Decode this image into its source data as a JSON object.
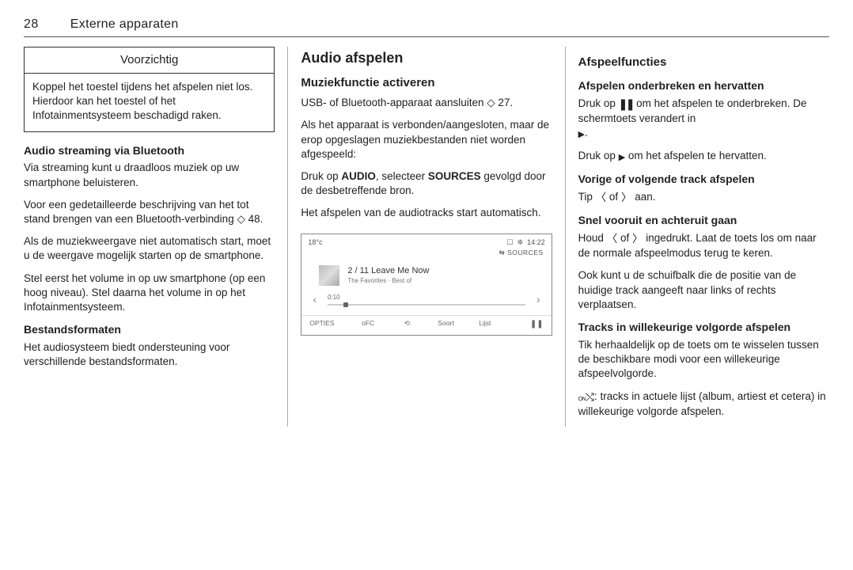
{
  "page": {
    "number": "28",
    "chapter": "Externe apparaten"
  },
  "col1": {
    "notice": {
      "title": "Voorzichtig",
      "body": "Koppel het toestel tijdens het afspelen niet los. Hierdoor kan het toestel of het Infotainmentsysteem beschadigd raken."
    },
    "h_bt": "Audio streaming via Bluetooth",
    "p_bt1": "Via streaming kunt u draadloos muziek op uw smartphone beluisteren.",
    "p_bt2a": "Voor een gedetailleerde beschrijving van het tot stand brengen van een Bluetooth-verbinding ",
    "p_bt2_ref": "◇ 48",
    "p_bt2b": ".",
    "p_bt3": "Als de muziekweergave niet automatisch start, moet u de weergave mogelijk starten op de smartphone.",
    "p_bt4": "Stel eerst het volume in op uw smartphone (op een hoog niveau). Stel daarna het volume in op het Infotainmentsysteem.",
    "h_fmt": "Bestandsformaten",
    "p_fmt": "Het audiosysteem biedt ondersteuning voor verschillende bestandsformaten."
  },
  "col2": {
    "h1": "Audio afspelen",
    "h2": "Muziekfunctie activeren",
    "p1a": "USB- of Bluetooth-apparaat aansluiten ",
    "p1_ref": "◇ 27",
    "p1b": ".",
    "p2": "Als het apparaat is verbonden/aangesloten, maar de erop opgeslagen muziekbestanden niet worden afgespeeld:",
    "p3a": "Druk op ",
    "p3_audio": "AUDIO",
    "p3b": ", selecteer ",
    "p3_sources": "SOURCES",
    "p3c": " gevolgd door de desbetreffende bron.",
    "p4": "Het afspelen van de audiotracks start automatisch.",
    "shot": {
      "temp": "18°c",
      "clock": "14:22",
      "sources": "⇆ SOURCES",
      "track": "2 / 11 Leave Me Now",
      "album": "The Favorites · Best of",
      "time": "0:10",
      "b1": "OPTIES",
      "b2": "oFC",
      "b3": "⟲",
      "b4": "Soort",
      "b5": "Lijst",
      "b6": "❚❚"
    }
  },
  "col3": {
    "h2": "Afspeelfuncties",
    "h_pause": "Afspelen onderbreken en hervatten",
    "p_pause1a": "Druk op ",
    "p_pause1b": " om het afspelen te onderbreken. De schermtoets verandert in ",
    "p_pause1c": ".",
    "p_pause2a": "Druk op ",
    "p_pause2b": " om het afspelen te hervatten.",
    "h_prevnext": "Vorige of volgende track afspelen",
    "p_prevnext_a": "Tip ",
    "p_prevnext_b": " of ",
    "p_prevnext_c": " aan.",
    "h_ff": "Snel vooruit en achteruit gaan",
    "p_ff_a": "Houd ",
    "p_ff_b": " of ",
    "p_ff_c": " ingedrukt. Laat de toets los om naar de normale afspeelmodus terug te keren.",
    "p_slider": "Ook kunt u de schuifbalk die de positie van de huidige track aangeeft naar links of rechts verplaatsen.",
    "h_shuffle": "Tracks in willekeurige volgorde afspelen",
    "p_shuffle1": "Tik herhaaldelijk op de toets om te wisselen tussen de beschikbare modi voor een willekeurige afspeelvolgorde.",
    "p_shuffle2": ": tracks in actuele lijst (album, artiest et cetera) in willekeurige volgorde afspelen."
  }
}
